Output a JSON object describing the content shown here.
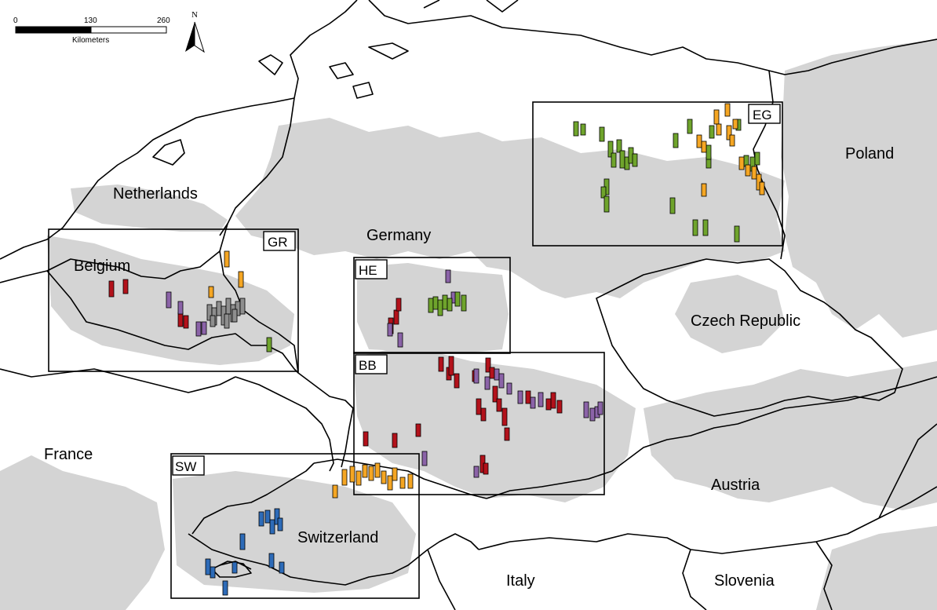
{
  "scale_bar": {
    "ticks": [
      "0",
      "130",
      "260"
    ],
    "unit": "Kilometers"
  },
  "north_arrow": {
    "label": "N",
    "icon": "north-arrow-icon"
  },
  "countries": [
    {
      "id": "netherlands",
      "name": "Netherlands"
    },
    {
      "id": "belgium",
      "name": "Belgium"
    },
    {
      "id": "germany",
      "name": "Germany"
    },
    {
      "id": "poland",
      "name": "Poland"
    },
    {
      "id": "czech",
      "name": "Czech Republic"
    },
    {
      "id": "france",
      "name": "France"
    },
    {
      "id": "switzerland",
      "name": "Switzerland"
    },
    {
      "id": "austria",
      "name": "Austria"
    },
    {
      "id": "italy",
      "name": "Italy"
    },
    {
      "id": "slovenia",
      "name": "Slovenia"
    }
  ],
  "regions": [
    {
      "id": "gr",
      "label": "GR"
    },
    {
      "id": "he",
      "label": "HE"
    },
    {
      "id": "bb",
      "label": "BB"
    },
    {
      "id": "eg",
      "label": "EG"
    },
    {
      "id": "sw",
      "label": "SW"
    }
  ],
  "colors": {
    "land_shade": "#d4d4d4",
    "border": "#000000",
    "green": "#6fa42c",
    "orange": "#f5a623",
    "red": "#b3121b",
    "purple": "#8b63a8",
    "grey": "#8e8e8e",
    "blue": "#2d6bb8"
  }
}
